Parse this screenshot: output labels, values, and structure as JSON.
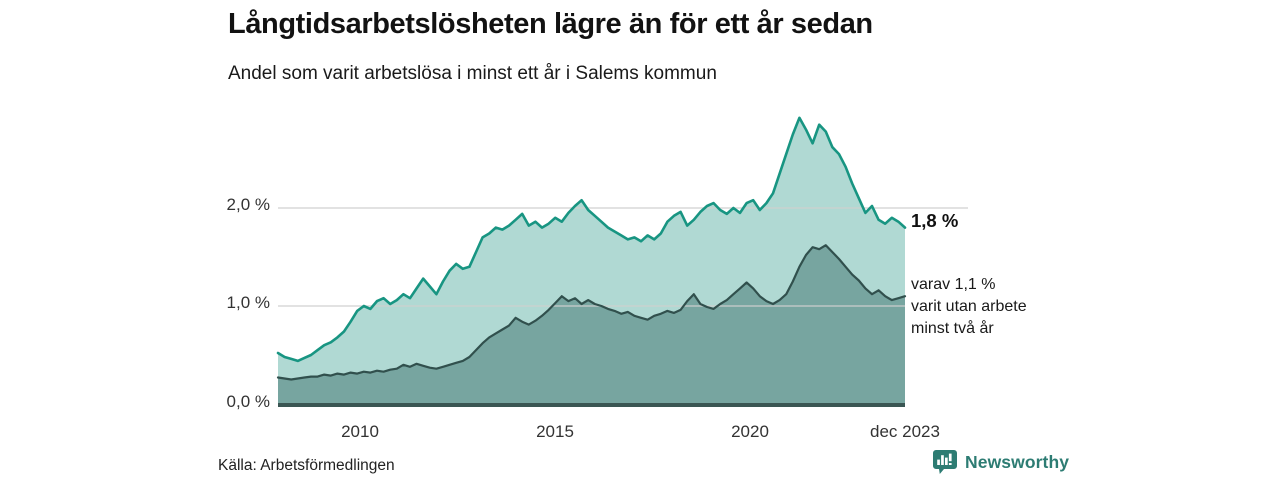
{
  "header": {
    "title": "Långtidsarbetslösheten lägre än för ett år sedan",
    "subtitle": "Andel som varit arbetslösa i minst ett år i Salems kommun"
  },
  "chart_data": {
    "type": "area",
    "x_unit": "year",
    "x_start": 2008.0,
    "x_end": 2023.92,
    "x_axis": {
      "ticks": [
        {
          "label": "2010",
          "year": 2010
        },
        {
          "label": "2015",
          "year": 2015
        },
        {
          "label": "2020",
          "year": 2020
        },
        {
          "label": "dec 2023",
          "year": 2023.92
        }
      ]
    },
    "y_axis": {
      "ticks": [
        {
          "label": "0,0 %",
          "value": 0
        },
        {
          "label": "1,0 %",
          "value": 1
        },
        {
          "label": "2,0 %",
          "value": 2
        }
      ],
      "ylim": [
        0,
        3.0
      ],
      "grid": true
    },
    "series": [
      {
        "name": "arbetslösa minst ett år",
        "line_color": "#189582",
        "fill_color": "#b0d9d3",
        "end_value": 1.8,
        "values": [
          0.52,
          0.48,
          0.46,
          0.44,
          0.47,
          0.5,
          0.55,
          0.6,
          0.63,
          0.68,
          0.74,
          0.84,
          0.95,
          1.0,
          0.97,
          1.05,
          1.08,
          1.02,
          1.06,
          1.12,
          1.08,
          1.18,
          1.28,
          1.2,
          1.12,
          1.25,
          1.36,
          1.43,
          1.38,
          1.4,
          1.55,
          1.7,
          1.74,
          1.8,
          1.78,
          1.82,
          1.88,
          1.94,
          1.82,
          1.86,
          1.8,
          1.84,
          1.9,
          1.86,
          1.95,
          2.02,
          2.08,
          1.98,
          1.92,
          1.86,
          1.8,
          1.76,
          1.72,
          1.68,
          1.7,
          1.66,
          1.72,
          1.68,
          1.74,
          1.86,
          1.92,
          1.96,
          1.82,
          1.88,
          1.96,
          2.02,
          2.05,
          1.98,
          1.94,
          2.0,
          1.95,
          2.05,
          2.08,
          1.98,
          2.05,
          2.15,
          2.35,
          2.55,
          2.75,
          2.92,
          2.8,
          2.66,
          2.85,
          2.78,
          2.62,
          2.55,
          2.42,
          2.25,
          2.1,
          1.95,
          2.02,
          1.88,
          1.84,
          1.9,
          1.86,
          1.8
        ]
      },
      {
        "name": "arbetslösa minst två år",
        "line_color": "#31504d",
        "fill_color": "#77a5a0",
        "end_value": 1.1,
        "values": [
          0.27,
          0.26,
          0.25,
          0.26,
          0.27,
          0.28,
          0.28,
          0.3,
          0.29,
          0.31,
          0.3,
          0.32,
          0.31,
          0.33,
          0.32,
          0.34,
          0.33,
          0.35,
          0.36,
          0.4,
          0.38,
          0.41,
          0.39,
          0.37,
          0.36,
          0.38,
          0.4,
          0.42,
          0.44,
          0.48,
          0.55,
          0.62,
          0.68,
          0.72,
          0.76,
          0.8,
          0.88,
          0.84,
          0.81,
          0.85,
          0.9,
          0.96,
          1.03,
          1.1,
          1.05,
          1.08,
          1.02,
          1.06,
          1.02,
          1.0,
          0.97,
          0.95,
          0.92,
          0.94,
          0.9,
          0.88,
          0.86,
          0.9,
          0.92,
          0.95,
          0.93,
          0.96,
          1.05,
          1.12,
          1.02,
          0.99,
          0.97,
          1.02,
          1.06,
          1.12,
          1.18,
          1.24,
          1.18,
          1.1,
          1.05,
          1.02,
          1.06,
          1.12,
          1.25,
          1.4,
          1.52,
          1.6,
          1.58,
          1.62,
          1.55,
          1.48,
          1.4,
          1.32,
          1.26,
          1.18,
          1.12,
          1.16,
          1.1,
          1.06,
          1.08,
          1.1
        ]
      }
    ],
    "annotations": {
      "end_value_label": "1,8 %",
      "secondary_lines": [
        "varav 1,1 %",
        "varit utan arbete",
        "minst två år"
      ]
    },
    "grid_color": "#cfcfcf",
    "baseline_color": "#3a5653",
    "legend": "none"
  },
  "footer": {
    "source": "Källa: Arbetsförmedlingen",
    "brand": "Newsworthy",
    "brand_color": "#2d7c73"
  }
}
